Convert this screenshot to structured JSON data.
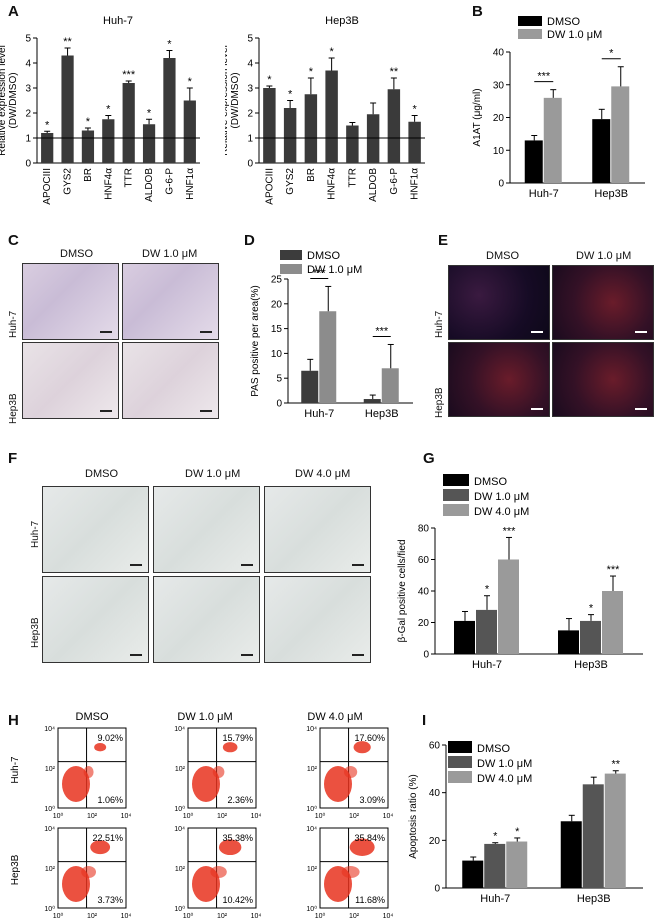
{
  "panel_letters": [
    "A",
    "B",
    "C",
    "D",
    "E",
    "F",
    "G",
    "H",
    "I"
  ],
  "stats": {
    "one": "*",
    "two": "**",
    "three": "***"
  },
  "chart_data": [
    {
      "id": "A1",
      "type": "bar",
      "title": "Huh-7",
      "ylabel": "Relative expression level (DW/DMSO)",
      "ylabel_lines": [
        "Relative expression level",
        "(DW/DMSO)"
      ],
      "ylim": [
        0,
        5
      ],
      "yticks": [
        "0",
        "1",
        "2",
        "3",
        "4",
        "5"
      ],
      "reference_line": 1,
      "categories": [
        "APOCIII",
        "GYS2",
        "BR",
        "HNF4α",
        "TTR",
        "ALDOB",
        "G-6-P",
        "HNF1α"
      ],
      "values": [
        1.2,
        4.3,
        1.3,
        1.75,
        3.2,
        1.55,
        4.2,
        2.5
      ],
      "errors": [
        0.07,
        0.3,
        0.1,
        0.15,
        0.08,
        0.2,
        0.3,
        0.5
      ],
      "significance": [
        "*",
        "**",
        "*",
        "*",
        "***",
        "*",
        "*",
        "*"
      ],
      "color": "#3a3a3a"
    },
    {
      "id": "A2",
      "type": "bar",
      "title": "Hep3B",
      "ylabel": "Relative expression level (DW/DMSO)",
      "ylabel_lines": [
        "Relative expression level",
        "(DW/DMSO)"
      ],
      "ylim": [
        0,
        5
      ],
      "yticks": [
        "0",
        "1",
        "2",
        "3",
        "4",
        "5"
      ],
      "reference_line": 1,
      "categories": [
        "APOCIII",
        "GYS2",
        "BR",
        "HNF4α",
        "TTR",
        "ALDOB",
        "G-6-P",
        "HNF1α"
      ],
      "values": [
        3.0,
        2.2,
        2.75,
        3.7,
        1.5,
        1.95,
        2.95,
        1.65
      ],
      "errors": [
        0.08,
        0.3,
        0.65,
        0.5,
        0.12,
        0.45,
        0.45,
        0.25
      ],
      "significance": [
        "*",
        "*",
        "*",
        "*",
        "",
        "",
        "**",
        "*"
      ],
      "color": "#3a3a3a"
    },
    {
      "id": "B",
      "type": "bar",
      "ylabel": "A1AT (μg/ml)",
      "ylim": [
        0,
        40
      ],
      "yticks": [
        "0",
        "10",
        "20",
        "30",
        "40"
      ],
      "categories": [
        "Huh-7",
        "Hep3B"
      ],
      "series": [
        {
          "name": "DMSO",
          "values": [
            13,
            19.5
          ],
          "errors": [
            1.5,
            3
          ],
          "color": "#000000"
        },
        {
          "name": "DW 1.0 μM",
          "values": [
            26,
            29.5
          ],
          "errors": [
            2.5,
            6
          ],
          "color": "#9a9a9a"
        }
      ],
      "significance": [
        "***",
        "*"
      ]
    },
    {
      "id": "D",
      "type": "bar",
      "ylabel": "PAS positive per area(%)",
      "ylim": [
        0,
        25
      ],
      "yticks": [
        "0",
        "5",
        "10",
        "15",
        "20",
        "25"
      ],
      "categories": [
        "Huh-7",
        "Hep3B"
      ],
      "series": [
        {
          "name": "DMSO",
          "values": [
            6.5,
            0.8
          ],
          "errors": [
            2.3,
            0.8
          ],
          "color": "#3c3c3c"
        },
        {
          "name": "DW 1.0 μM",
          "values": [
            18.5,
            7
          ],
          "errors": [
            5,
            4.8
          ],
          "color": "#8c8c8c"
        }
      ],
      "significance": [
        "***",
        "***"
      ]
    },
    {
      "id": "G",
      "type": "bar",
      "ylabel": "β-Gal positive cells/fied",
      "ylim": [
        0,
        80
      ],
      "yticks": [
        "0",
        "20",
        "40",
        "60",
        "80"
      ],
      "categories": [
        "Huh-7",
        "Hep3B"
      ],
      "series": [
        {
          "name": "DMSO",
          "values": [
            21,
            15
          ],
          "errors": [
            6,
            7.5
          ],
          "color": "#000000"
        },
        {
          "name": "DW 1.0 μM",
          "values": [
            28,
            21
          ],
          "errors": [
            9,
            4
          ],
          "color": "#555555"
        },
        {
          "name": "DW 4.0 μM",
          "values": [
            60,
            40
          ],
          "errors": [
            14,
            9.5
          ],
          "color": "#9a9a9a"
        }
      ],
      "significance": [
        [
          "",
          "*",
          "***"
        ],
        [
          "",
          "*",
          "***"
        ]
      ]
    },
    {
      "id": "I",
      "type": "bar",
      "ylabel": "Apoptosis ratio (%)",
      "ylim": [
        0,
        60
      ],
      "yticks": [
        "0",
        "20",
        "40",
        "60"
      ],
      "categories": [
        "Huh-7",
        "Hep3B"
      ],
      "series": [
        {
          "name": "DMSO",
          "values": [
            11.5,
            28
          ],
          "errors": [
            1.5,
            2.5
          ],
          "color": "#000000"
        },
        {
          "name": "DW 1.0 μM",
          "values": [
            18.5,
            43.5
          ],
          "errors": [
            0.5,
            3
          ],
          "color": "#555555"
        },
        {
          "name": "DW 4.0 μM",
          "values": [
            19.5,
            48
          ],
          "errors": [
            1.5,
            1.2
          ],
          "color": "#9a9a9a"
        }
      ],
      "significance": [
        [
          "",
          "*",
          "*"
        ],
        [
          "",
          "",
          "**"
        ]
      ]
    }
  ],
  "panelC": {
    "cols": [
      "DMSO",
      "DW 1.0 μM"
    ],
    "rows": [
      "Huh-7",
      "Hep3B"
    ]
  },
  "panelE": {
    "cols": [
      "DMSO",
      "DW 1.0 μM"
    ],
    "rows": [
      "Huh-7",
      "Hep3B"
    ]
  },
  "panelF": {
    "cols": [
      "DMSO",
      "DW 1.0 μM",
      "DW 4.0 μM"
    ],
    "rows": [
      "Huh-7",
      "Hep3B"
    ]
  },
  "panelH": {
    "cols": [
      "DMSO",
      "DW 1.0 μM",
      "DW 4.0 μM"
    ],
    "rows": [
      "Huh-7",
      "Hep3B"
    ],
    "axis_ticks": [
      "10⁰",
      "10²",
      "10⁴"
    ],
    "y_ticks": [
      "10⁴",
      "10²",
      "10⁰"
    ],
    "quadrants": [
      [
        {
          "upper": "9.02%",
          "lower": "1.06%"
        },
        {
          "upper": "15.79%",
          "lower": "2.36%"
        },
        {
          "upper": "17.60%",
          "lower": "3.09%"
        }
      ],
      [
        {
          "upper": "22.51%",
          "lower": "3.73%"
        },
        {
          "upper": "35.38%",
          "lower": "10.42%"
        },
        {
          "upper": "35.84%",
          "lower": "11.68%"
        }
      ]
    ]
  }
}
